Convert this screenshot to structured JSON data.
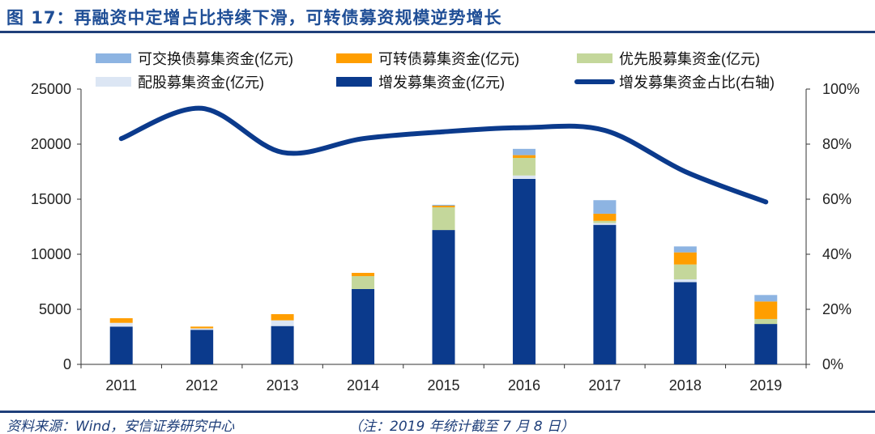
{
  "title": "图 17：再融资中定增占比持续下滑，可转债募资规模逆势增长",
  "source": "资料来源：Wind，安信证券研究中心",
  "note": "（注：2019 年统计截至 7 月 8 日）",
  "chart_data": {
    "type": "bar",
    "stacked": true,
    "categories": [
      "2011",
      "2012",
      "2013",
      "2014",
      "2015",
      "2016",
      "2017",
      "2018",
      "2019"
    ],
    "ylim": [
      0,
      25000
    ],
    "yticks": [
      "0",
      "5000",
      "10000",
      "15000",
      "20000",
      "25000"
    ],
    "y2lim": [
      0,
      1
    ],
    "y2ticks": [
      "0%",
      "20%",
      "40%",
      "60%",
      "80%",
      "100%"
    ],
    "legend_position": "top",
    "grid": false,
    "series": [
      {
        "name": "增发募集资金(亿元)",
        "color": "#0b3a8c",
        "values": [
          3430,
          3140,
          3480,
          6840,
          12200,
          16840,
          12670,
          7470,
          3670
        ]
      },
      {
        "name": "配股募集资金(亿元)",
        "color": "#dce6f4",
        "values": [
          340,
          130,
          520,
          0,
          0,
          310,
          160,
          250,
          0
        ]
      },
      {
        "name": "优先股募集资金(亿元)",
        "color": "#c4d79b",
        "values": [
          0,
          0,
          0,
          1170,
          2060,
          1600,
          200,
          1350,
          450
        ]
      },
      {
        "name": "可转债募集资金(亿元)",
        "color": "#ff9e00",
        "values": [
          420,
          160,
          560,
          300,
          150,
          250,
          650,
          1100,
          1590
        ]
      },
      {
        "name": "可交换债募集资金(亿元)",
        "color": "#8db4e2",
        "values": [
          0,
          0,
          0,
          0,
          80,
          570,
          1230,
          540,
          590
        ]
      }
    ],
    "line": {
      "name": "增发募集资金占比(右轴)",
      "color": "#0b3a8c",
      "axis": "right",
      "values": [
        0.82,
        0.93,
        0.77,
        0.82,
        0.845,
        0.86,
        0.85,
        0.7,
        0.59
      ]
    },
    "legend_order": [
      4,
      3,
      2,
      1,
      0,
      "line"
    ]
  }
}
